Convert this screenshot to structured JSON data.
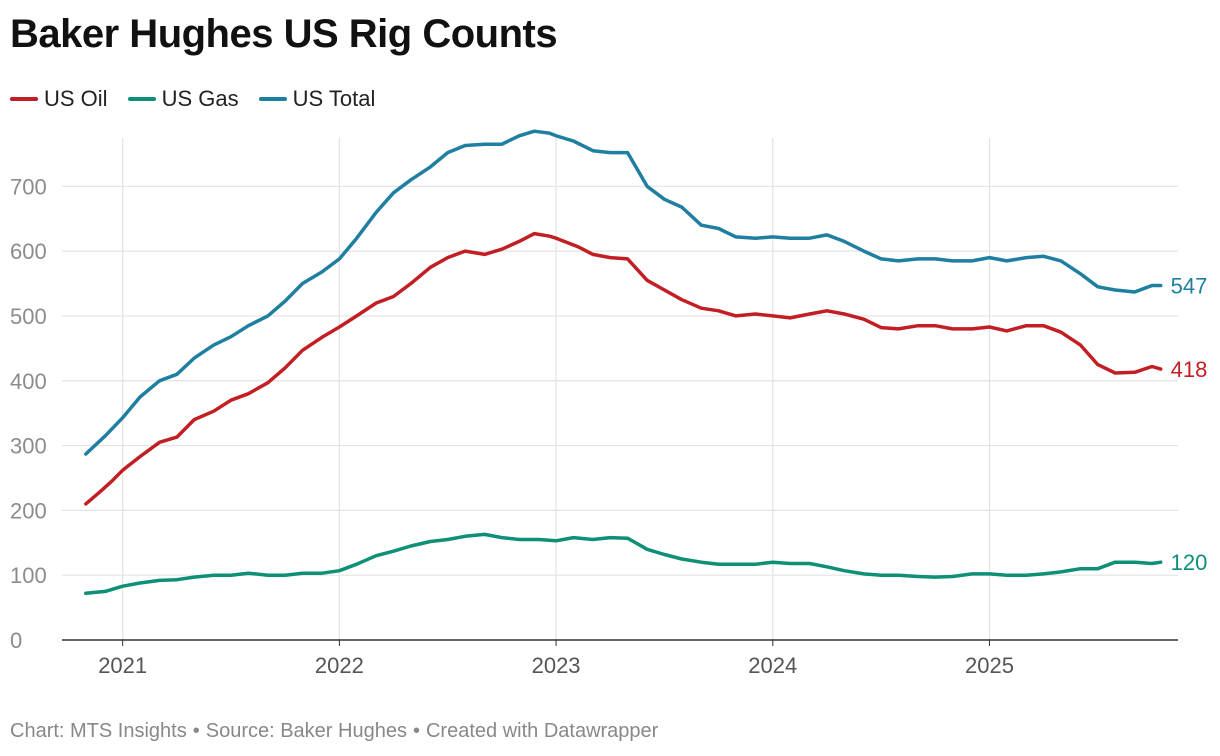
{
  "chart_data": {
    "type": "line",
    "title": "Baker Hughes US Rig Counts",
    "x_ticks": [
      "2021",
      "2022",
      "2023",
      "2024",
      "2025"
    ],
    "x_tick_values": [
      2021,
      2022,
      2023,
      2024,
      2025
    ],
    "xlim": [
      2020.72,
      2025.87
    ],
    "y_ticks": [
      0,
      100,
      200,
      300,
      400,
      500,
      600,
      700
    ],
    "ylim": [
      0,
      790
    ],
    "legend_position": "top-left",
    "series": [
      {
        "name": "US Oil",
        "color": "#c21f24",
        "end_label": "418",
        "points": [
          [
            2020.83,
            210
          ],
          [
            2020.9,
            230
          ],
          [
            2020.95,
            245
          ],
          [
            2021.0,
            262
          ],
          [
            2021.08,
            283
          ],
          [
            2021.17,
            305
          ],
          [
            2021.25,
            313
          ],
          [
            2021.33,
            340
          ],
          [
            2021.42,
            353
          ],
          [
            2021.5,
            370
          ],
          [
            2021.58,
            380
          ],
          [
            2021.67,
            397
          ],
          [
            2021.75,
            420
          ],
          [
            2021.83,
            447
          ],
          [
            2021.92,
            467
          ],
          [
            2022.0,
            483
          ],
          [
            2022.08,
            500
          ],
          [
            2022.17,
            520
          ],
          [
            2022.25,
            530
          ],
          [
            2022.33,
            550
          ],
          [
            2022.42,
            575
          ],
          [
            2022.5,
            590
          ],
          [
            2022.58,
            600
          ],
          [
            2022.67,
            595
          ],
          [
            2022.75,
            603
          ],
          [
            2022.83,
            615
          ],
          [
            2022.9,
            627
          ],
          [
            2022.97,
            623
          ],
          [
            2023.0,
            620
          ],
          [
            2023.1,
            607
          ],
          [
            2023.17,
            595
          ],
          [
            2023.25,
            590
          ],
          [
            2023.33,
            588
          ],
          [
            2023.42,
            555
          ],
          [
            2023.5,
            540
          ],
          [
            2023.58,
            525
          ],
          [
            2023.67,
            512
          ],
          [
            2023.75,
            508
          ],
          [
            2023.83,
            500
          ],
          [
            2023.92,
            503
          ],
          [
            2024.0,
            500
          ],
          [
            2024.08,
            497
          ],
          [
            2024.17,
            503
          ],
          [
            2024.25,
            508
          ],
          [
            2024.33,
            503
          ],
          [
            2024.42,
            495
          ],
          [
            2024.5,
            482
          ],
          [
            2024.58,
            480
          ],
          [
            2024.67,
            485
          ],
          [
            2024.75,
            485
          ],
          [
            2024.83,
            480
          ],
          [
            2024.92,
            480
          ],
          [
            2025.0,
            483
          ],
          [
            2025.08,
            477
          ],
          [
            2025.17,
            485
          ],
          [
            2025.25,
            485
          ],
          [
            2025.33,
            475
          ],
          [
            2025.42,
            455
          ],
          [
            2025.5,
            425
          ],
          [
            2025.58,
            412
          ],
          [
            2025.67,
            413
          ],
          [
            2025.75,
            422
          ],
          [
            2025.79,
            418
          ]
        ]
      },
      {
        "name": "US Gas",
        "color": "#0e8f77",
        "end_label": "120",
        "points": [
          [
            2020.83,
            72
          ],
          [
            2020.92,
            75
          ],
          [
            2021.0,
            83
          ],
          [
            2021.08,
            88
          ],
          [
            2021.17,
            92
          ],
          [
            2021.25,
            93
          ],
          [
            2021.33,
            97
          ],
          [
            2021.42,
            100
          ],
          [
            2021.5,
            100
          ],
          [
            2021.58,
            103
          ],
          [
            2021.67,
            100
          ],
          [
            2021.75,
            100
          ],
          [
            2021.83,
            103
          ],
          [
            2021.92,
            103
          ],
          [
            2022.0,
            107
          ],
          [
            2022.08,
            117
          ],
          [
            2022.17,
            130
          ],
          [
            2022.25,
            137
          ],
          [
            2022.33,
            145
          ],
          [
            2022.42,
            152
          ],
          [
            2022.5,
            155
          ],
          [
            2022.58,
            160
          ],
          [
            2022.67,
            163
          ],
          [
            2022.75,
            158
          ],
          [
            2022.83,
            155
          ],
          [
            2022.92,
            155
          ],
          [
            2023.0,
            153
          ],
          [
            2023.08,
            158
          ],
          [
            2023.17,
            155
          ],
          [
            2023.25,
            158
          ],
          [
            2023.33,
            157
          ],
          [
            2023.42,
            140
          ],
          [
            2023.5,
            132
          ],
          [
            2023.58,
            125
          ],
          [
            2023.67,
            120
          ],
          [
            2023.75,
            117
          ],
          [
            2023.83,
            117
          ],
          [
            2023.92,
            117
          ],
          [
            2024.0,
            120
          ],
          [
            2024.08,
            118
          ],
          [
            2024.17,
            118
          ],
          [
            2024.25,
            113
          ],
          [
            2024.33,
            107
          ],
          [
            2024.42,
            102
          ],
          [
            2024.5,
            100
          ],
          [
            2024.58,
            100
          ],
          [
            2024.67,
            98
          ],
          [
            2024.75,
            97
          ],
          [
            2024.83,
            98
          ],
          [
            2024.92,
            102
          ],
          [
            2025.0,
            102
          ],
          [
            2025.08,
            100
          ],
          [
            2025.17,
            100
          ],
          [
            2025.25,
            102
          ],
          [
            2025.33,
            105
          ],
          [
            2025.42,
            110
          ],
          [
            2025.5,
            110
          ],
          [
            2025.58,
            120
          ],
          [
            2025.67,
            120
          ],
          [
            2025.75,
            118
          ],
          [
            2025.79,
            120
          ]
        ]
      },
      {
        "name": "US Total",
        "color": "#1f7fa1",
        "end_label": "547",
        "points": [
          [
            2020.83,
            287
          ],
          [
            2020.92,
            315
          ],
          [
            2021.0,
            343
          ],
          [
            2021.08,
            375
          ],
          [
            2021.17,
            400
          ],
          [
            2021.25,
            410
          ],
          [
            2021.33,
            435
          ],
          [
            2021.42,
            455
          ],
          [
            2021.5,
            468
          ],
          [
            2021.58,
            485
          ],
          [
            2021.67,
            500
          ],
          [
            2021.75,
            523
          ],
          [
            2021.83,
            550
          ],
          [
            2021.92,
            568
          ],
          [
            2022.0,
            588
          ],
          [
            2022.08,
            620
          ],
          [
            2022.17,
            660
          ],
          [
            2022.25,
            690
          ],
          [
            2022.33,
            710
          ],
          [
            2022.42,
            730
          ],
          [
            2022.5,
            752
          ],
          [
            2022.58,
            763
          ],
          [
            2022.67,
            765
          ],
          [
            2022.75,
            765
          ],
          [
            2022.83,
            778
          ],
          [
            2022.9,
            785
          ],
          [
            2022.97,
            782
          ],
          [
            2023.0,
            778
          ],
          [
            2023.08,
            770
          ],
          [
            2023.17,
            755
          ],
          [
            2023.25,
            752
          ],
          [
            2023.33,
            752
          ],
          [
            2023.42,
            700
          ],
          [
            2023.5,
            680
          ],
          [
            2023.58,
            668
          ],
          [
            2023.67,
            640
          ],
          [
            2023.75,
            635
          ],
          [
            2023.83,
            622
          ],
          [
            2023.92,
            620
          ],
          [
            2024.0,
            622
          ],
          [
            2024.08,
            620
          ],
          [
            2024.17,
            620
          ],
          [
            2024.25,
            625
          ],
          [
            2024.33,
            615
          ],
          [
            2024.42,
            600
          ],
          [
            2024.5,
            588
          ],
          [
            2024.58,
            585
          ],
          [
            2024.67,
            588
          ],
          [
            2024.75,
            588
          ],
          [
            2024.83,
            585
          ],
          [
            2024.92,
            585
          ],
          [
            2025.0,
            590
          ],
          [
            2025.08,
            585
          ],
          [
            2025.17,
            590
          ],
          [
            2025.25,
            592
          ],
          [
            2025.33,
            585
          ],
          [
            2025.42,
            565
          ],
          [
            2025.5,
            545
          ],
          [
            2025.58,
            540
          ],
          [
            2025.67,
            537
          ],
          [
            2025.75,
            547
          ],
          [
            2025.79,
            547
          ]
        ]
      }
    ]
  },
  "footer": {
    "chart_by": "Chart: MTS Insights",
    "source": "Source: Baker Hughes",
    "created": "Created with Datawrapper",
    "separator": "•"
  }
}
